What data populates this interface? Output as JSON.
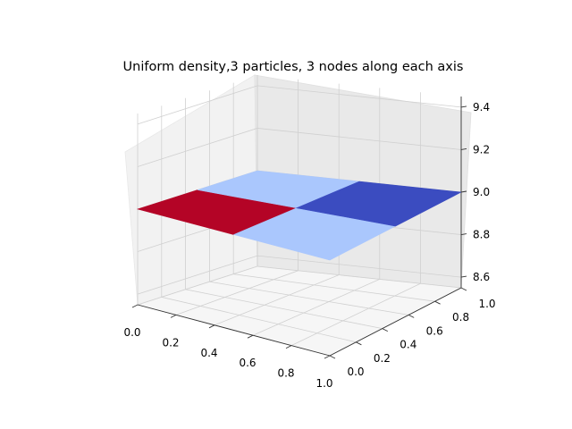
{
  "chart_data": {
    "type": "surface3d",
    "title": "Uniform density,3 particles, 3 nodes along each axis",
    "colormap": "coolwarm",
    "x_ticks": [
      "0.0",
      "0.2",
      "0.4",
      "0.6",
      "0.8",
      "1.0"
    ],
    "y_ticks": [
      "0.0",
      "0.2",
      "0.4",
      "0.6",
      "0.8",
      "1.0"
    ],
    "z_ticks": [
      "8.6",
      "8.8",
      "9.0",
      "9.2",
      "9.4"
    ],
    "xlim": [
      0,
      1
    ],
    "ylim": [
      0,
      1
    ],
    "zlim": [
      8.55,
      9.45
    ],
    "x": [
      0,
      0.5,
      1
    ],
    "y": [
      0,
      0.5,
      1
    ],
    "z": [
      [
        9,
        9,
        9
      ],
      [
        9,
        9,
        9
      ],
      [
        9,
        9,
        9
      ]
    ],
    "cells": [
      {
        "x": [
          0,
          0.5
        ],
        "y": [
          0,
          0.5
        ],
        "color": "#b40426",
        "name": "cell-x0-y0"
      },
      {
        "x": [
          0.5,
          1
        ],
        "y": [
          0,
          0.5
        ],
        "color": "#aac7fd",
        "name": "cell-x1-y0"
      },
      {
        "x": [
          0,
          0.5
        ],
        "y": [
          0.5,
          1
        ],
        "color": "#aac7fd",
        "name": "cell-x0-y1"
      },
      {
        "x": [
          0.5,
          1
        ],
        "y": [
          0.5,
          1
        ],
        "color": "#3b4cc0",
        "name": "cell-x1-y1"
      }
    ],
    "grid": true
  }
}
